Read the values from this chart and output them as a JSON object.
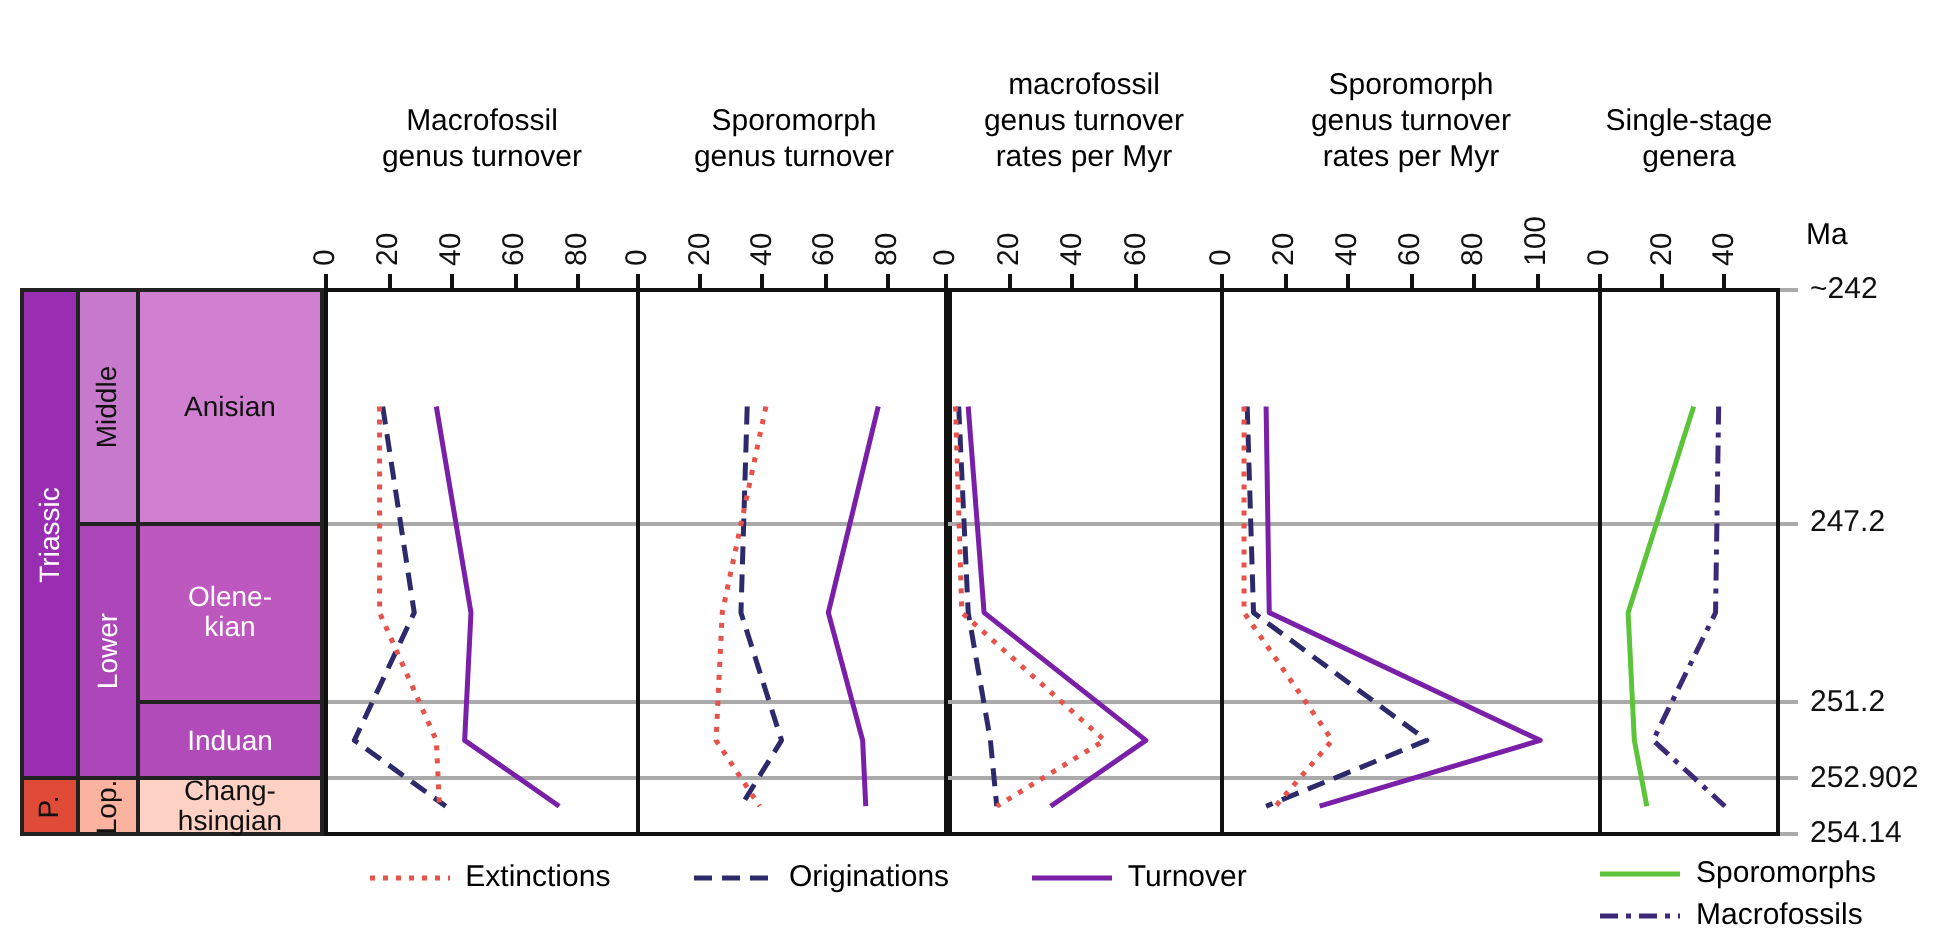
{
  "chart_data": [
    {
      "type": "other",
      "annotations": [
        "Triassic",
        "P.",
        "Middle",
        "Lower",
        "Lop.",
        "Anisian",
        "Olene-kian",
        "Induan",
        "Chang-hsingian"
      ]
    },
    {
      "type": "line",
      "title": "Macrofossil genus turnover",
      "orientation": "horizontal",
      "x": [
        244.6,
        249.2,
        252.05,
        253.52
      ],
      "series": [
        {
          "name": "Extinctions",
          "color": "#e5534b",
          "line_style": "dotted",
          "values": [
            17,
            17,
            35,
            36
          ]
        },
        {
          "name": "Originations",
          "color": "#2d2a6b",
          "line_style": "dashed",
          "values": [
            18,
            28,
            9,
            38
          ]
        },
        {
          "name": "Turnover",
          "color": "#7a1fa8",
          "line_style": "solid",
          "values": [
            35,
            46,
            44,
            74
          ]
        }
      ],
      "xlim": [
        0,
        99
      ],
      "xticks": [
        0,
        20,
        40,
        60,
        80
      ],
      "ylim": [
        254.14,
        242
      ],
      "yticks": [
        242,
        247.2,
        251.2,
        252.902,
        254.14
      ],
      "grid": "y",
      "tick_labels": "x",
      "legend": "bottom"
    },
    {
      "type": "line",
      "title": "Sporomorph genus turnover",
      "orientation": "horizontal",
      "x": [
        244.6,
        249.2,
        252.05,
        253.52
      ],
      "series": [
        {
          "color": "#e5534b",
          "line_style": "dotted",
          "values": [
            41,
            27,
            25,
            39
          ]
        },
        {
          "color": "#2d2a6b",
          "line_style": "dashed",
          "values": [
            35,
            33,
            46,
            33
          ]
        },
        {
          "color": "#7a1fa8",
          "line_style": "solid",
          "values": [
            77,
            61,
            72,
            73
          ]
        }
      ],
      "xlim": [
        0,
        100
      ],
      "xticks": [
        0,
        20,
        40,
        60,
        80
      ],
      "ylim": [
        254.14,
        242
      ],
      "yticks": [
        242,
        247.2,
        251.2,
        252.902,
        254.14
      ],
      "grid": "y",
      "tick_labels": "x"
    },
    {
      "type": "line",
      "title": "macrofossil genus turnover rates per Myr",
      "orientation": "horizontal",
      "x": [
        244.6,
        249.2,
        252.05,
        253.52
      ],
      "series": [
        {
          "color": "#e5534b",
          "line_style": "dotted",
          "values": [
            3,
            5,
            50,
            16
          ]
        },
        {
          "color": "#2d2a6b",
          "line_style": "dashed",
          "values": [
            4,
            7,
            14,
            16
          ]
        },
        {
          "color": "#7a1fa8",
          "line_style": "solid",
          "values": [
            7,
            12,
            63,
            33
          ]
        }
      ],
      "xlim": [
        0,
        87
      ],
      "xticks": [
        0,
        20,
        40,
        60
      ],
      "ylim": [
        254.14,
        242
      ],
      "yticks": [
        242,
        247.2,
        251.2,
        252.902,
        254.14
      ],
      "grid": "y",
      "tick_labels": "x"
    },
    {
      "type": "line",
      "title": "Sporomorph genus turnover rates per Myr",
      "orientation": "horizontal",
      "x": [
        244.6,
        249.2,
        252.05,
        253.52
      ],
      "series": [
        {
          "color": "#e5534b",
          "line_style": "dotted",
          "values": [
            7,
            7,
            35,
            17
          ]
        },
        {
          "color": "#2d2a6b",
          "line_style": "dashed",
          "values": [
            8,
            10,
            65,
            14
          ]
        },
        {
          "color": "#7a1fa8",
          "line_style": "solid",
          "values": [
            14,
            15,
            101,
            31
          ]
        }
      ],
      "xlim": [
        0,
        120
      ],
      "xticks": [
        0,
        20,
        40,
        60,
        80,
        100
      ],
      "ylim": [
        254.14,
        242
      ],
      "yticks": [
        242,
        247.2,
        251.2,
        252.902,
        254.14
      ],
      "grid": "y",
      "tick_labels": "x"
    },
    {
      "type": "line",
      "title": "Single-stage genera",
      "ylabel": "Ma",
      "orientation": "horizontal",
      "x": [
        244.6,
        249.2,
        252.05,
        253.52
      ],
      "series": [
        {
          "name": "Sporomorphs",
          "color": "#5cc43a",
          "line_style": "solid",
          "values": [
            30,
            9,
            11,
            15
          ]
        },
        {
          "name": "Macrofossils",
          "color": "#3c2a78",
          "line_style": "dashdot",
          "values": [
            38,
            37,
            17,
            40
          ]
        }
      ],
      "xlim": [
        0,
        57
      ],
      "xticks": [
        0,
        20,
        40
      ],
      "ylim": [
        254.14,
        242
      ],
      "yticks": [
        {
          "value": 242,
          "label": "~242"
        },
        247.2,
        251.2,
        252.902,
        254.14
      ],
      "grid": "y",
      "legend": "bottom"
    }
  ]
}
